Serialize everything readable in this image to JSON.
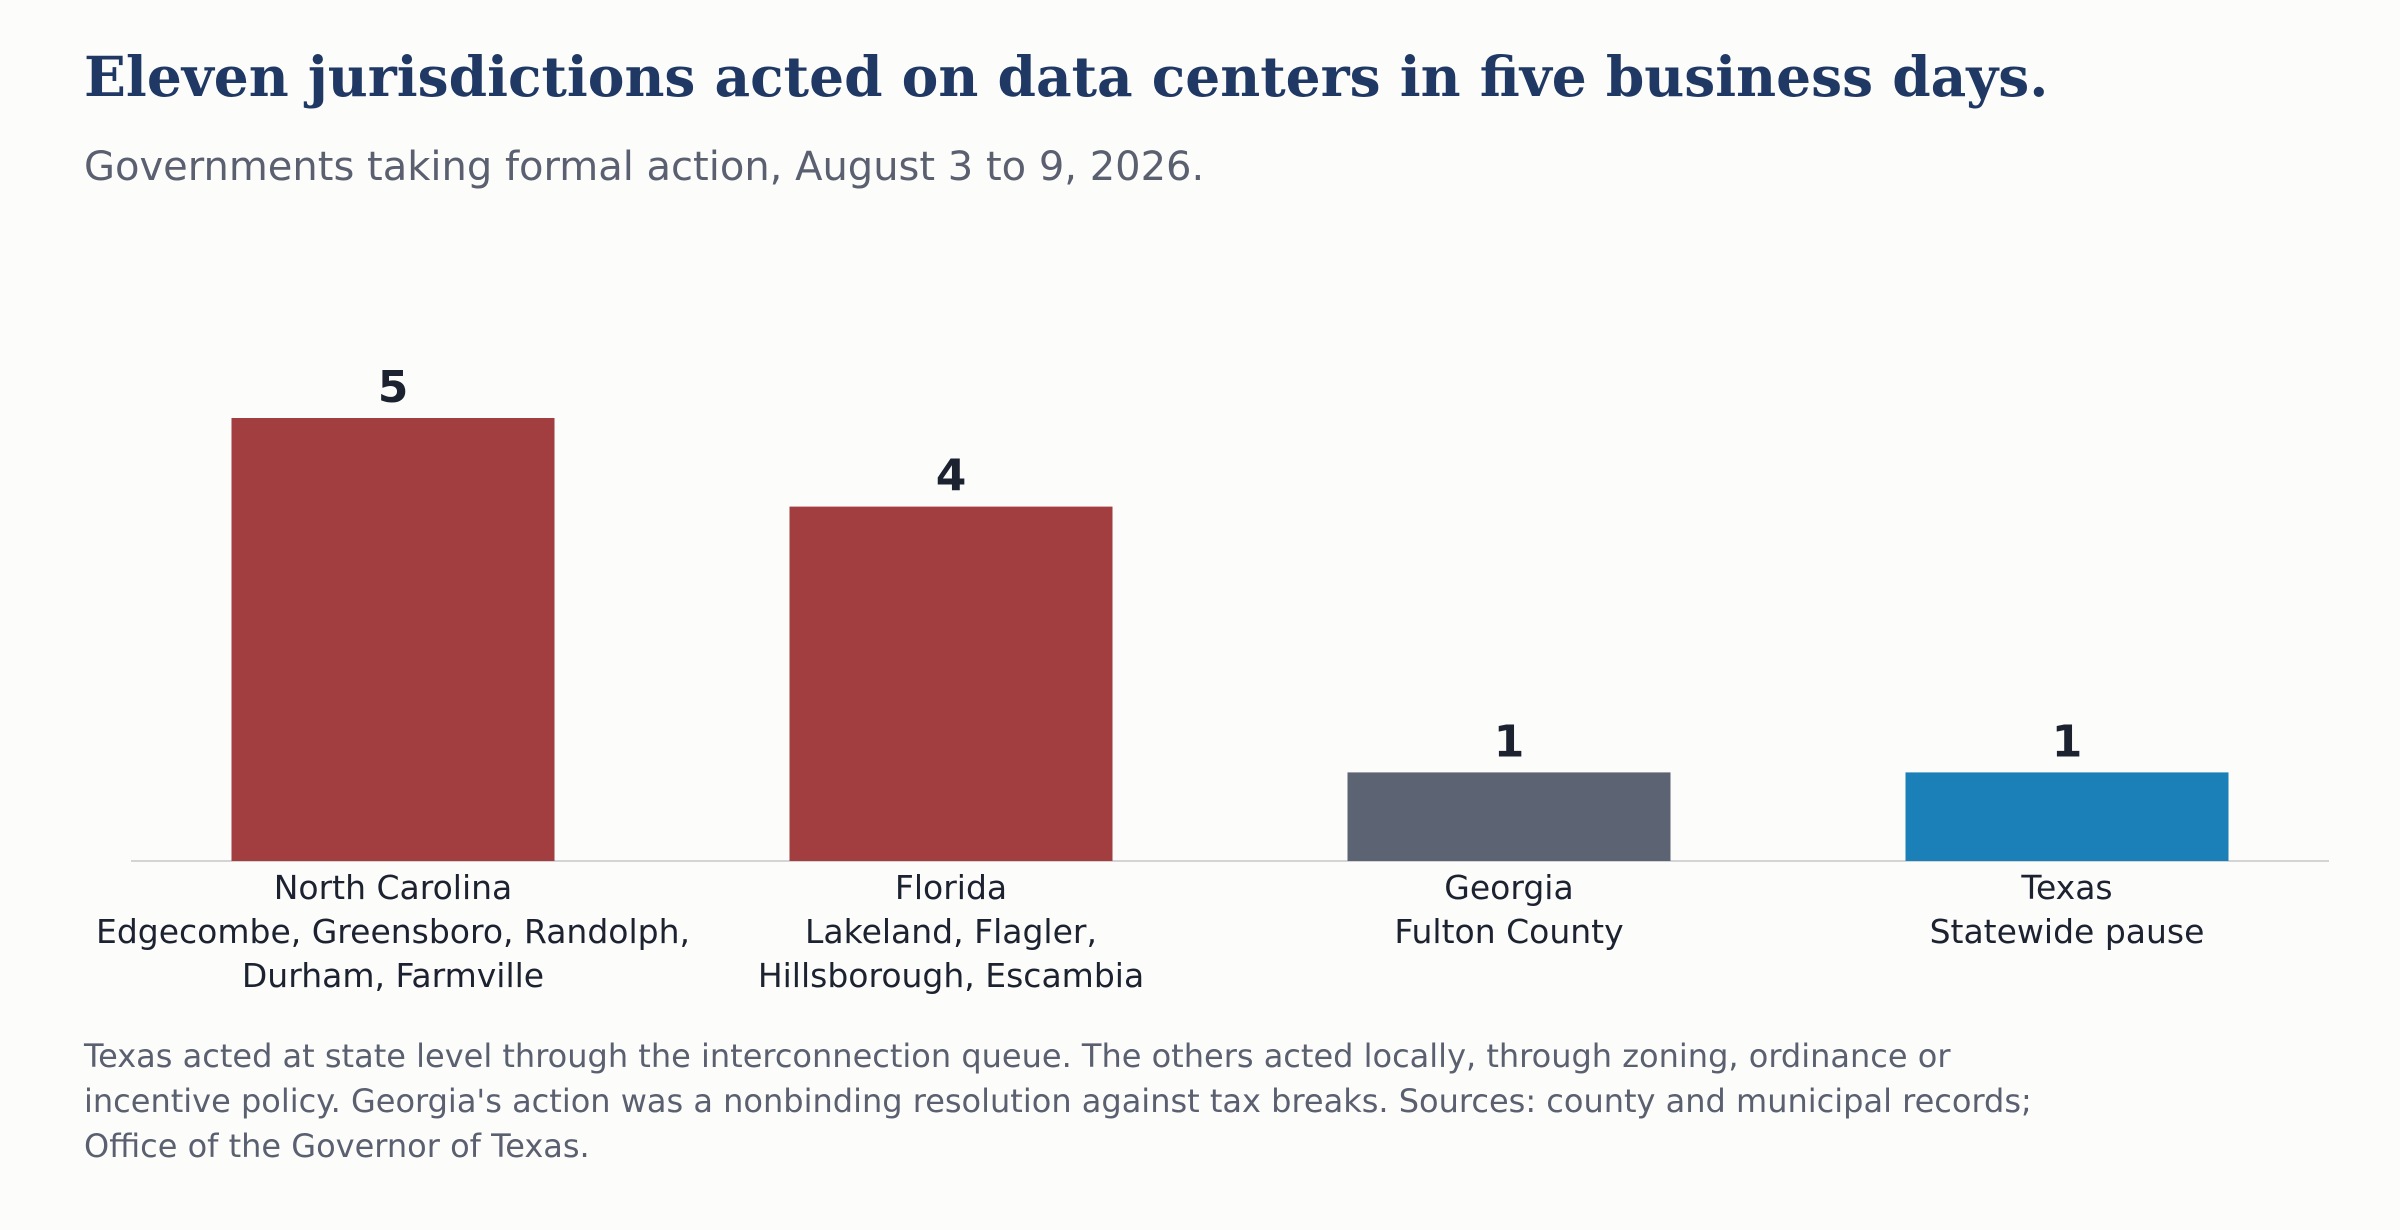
{
  "title": "Eleven jurisdictions acted on data centers in five business days.",
  "subtitle": "Governments taking formal action, August 3 to 9, 2026.",
  "footnote": "Texas acted at state level through the interconnection queue. The others acted locally, through zoning, ordinance or incentive policy. Georgia's action was a nonbinding resolution against tax breaks. Sources: county and municipal records; Office of the Governor of Texas.",
  "chart_data": {
    "type": "bar",
    "categories": [
      "North Carolina",
      "Florida",
      "Georgia",
      "Texas"
    ],
    "sublabels": [
      [
        "Edgecombe, Greensboro, Randolph,",
        "Durham, Farmville"
      ],
      [
        "Lakeland, Flagler,",
        "Hillsborough, Escambia"
      ],
      [
        "Fulton County"
      ],
      [
        "Statewide pause"
      ]
    ],
    "values": [
      5,
      4,
      1,
      1
    ],
    "value_labels": [
      "5",
      "4",
      "1",
      "1"
    ],
    "colors": [
      "#a23d40",
      "#a23d40",
      "#5c6473",
      "#1c80b8"
    ],
    "ylim": [
      0,
      6
    ],
    "xlabel": "",
    "ylabel": "",
    "grid": false,
    "legend": "none"
  }
}
